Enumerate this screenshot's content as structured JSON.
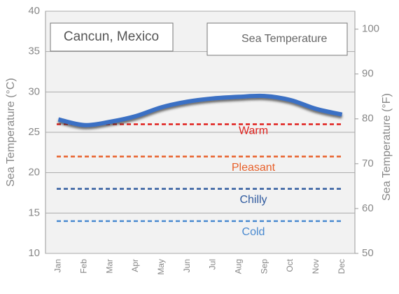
{
  "chart_data": {
    "type": "line",
    "title": "Cancun, Mexico",
    "categories": [
      "Jan",
      "Feb",
      "Mar",
      "Apr",
      "May",
      "Jun",
      "Jul",
      "Aug",
      "Sep",
      "Oct",
      "Nov",
      "Dec"
    ],
    "series": [
      {
        "name": "Sea Temperature",
        "color": "#3a6fc4",
        "values": [
          26.6,
          25.9,
          26.3,
          27.0,
          28.1,
          28.8,
          29.2,
          29.4,
          29.5,
          29.0,
          27.9,
          27.2
        ]
      }
    ],
    "thresholds": [
      {
        "name": "Warm",
        "value": 26,
        "color": "#e0201c"
      },
      {
        "name": "Pleasant",
        "value": 22,
        "color": "#e8602a"
      },
      {
        "name": "Chilly",
        "value": 18,
        "color": "#2f5a9e"
      },
      {
        "name": "Cold",
        "value": 14,
        "color": "#4a8ad0"
      }
    ],
    "ylabel": "Sea Temperature (°C)",
    "y2label": "Sea Temperature (°F)",
    "ylim": [
      10,
      40
    ],
    "yticks": [
      10,
      15,
      20,
      25,
      30,
      35,
      40
    ],
    "y2lim": [
      50,
      104
    ],
    "y2ticks": [
      50,
      60,
      70,
      80,
      90,
      100
    ],
    "grid": true
  }
}
